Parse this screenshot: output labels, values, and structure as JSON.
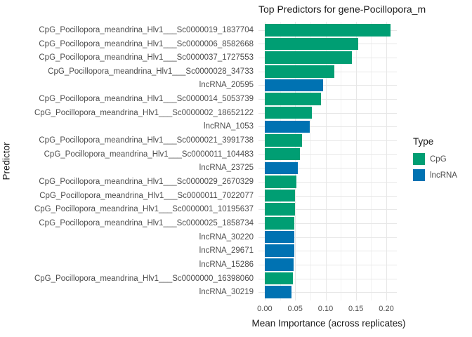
{
  "chart_data": {
    "type": "bar",
    "orientation": "horizontal",
    "title": "Top Predictors for gene-Pocillopora_m",
    "xlabel": "Mean Importance (across replicates)",
    "ylabel": "Predictor",
    "xlim": [
      0,
      0.2174
    ],
    "x_ticks": [
      0.0,
      0.05,
      0.1,
      0.15,
      0.2
    ],
    "x_tick_labels": [
      "0.00",
      "0.05",
      "0.10",
      "0.15",
      "0.20"
    ],
    "x_minor_gridlines": [
      0.025,
      0.075,
      0.125,
      0.175
    ],
    "grid": true,
    "legend": {
      "title": "Type",
      "position": "right",
      "entries": [
        {
          "label": "CpG",
          "color": "#009E73"
        },
        {
          "label": "lncRNA",
          "color": "#0072B2"
        }
      ]
    },
    "series_colors": {
      "CpG": "#009E73",
      "lncRNA": "#0072B2"
    },
    "bars": [
      {
        "label": "CpG_Pocillopora_meandrina_Hlv1___Sc0000019_1837704",
        "type": "CpG",
        "value": 0.207
      },
      {
        "label": "CpG_Pocillopora_meandrina_Hlv1___Sc0000006_8582668",
        "type": "CpG",
        "value": 0.154
      },
      {
        "label": "CpG_Pocillopora_meandrina_Hlv1___Sc0000037_1727553",
        "type": "CpG",
        "value": 0.143
      },
      {
        "label": "CpG_Pocillopora_meandrina_Hlv1___Sc0000028_34733",
        "type": "CpG",
        "value": 0.114
      },
      {
        "label": "lncRNA_20595",
        "type": "lncRNA",
        "value": 0.096
      },
      {
        "label": "CpG_Pocillopora_meandrina_Hlv1___Sc0000014_5053739",
        "type": "CpG",
        "value": 0.092
      },
      {
        "label": "CpG_Pocillopora_meandrina_Hlv1___Sc0000002_18652122",
        "type": "CpG",
        "value": 0.078
      },
      {
        "label": "lncRNA_1053",
        "type": "lncRNA",
        "value": 0.074
      },
      {
        "label": "CpG_Pocillopora_meandrina_Hlv1___Sc0000021_3991738",
        "type": "CpG",
        "value": 0.061
      },
      {
        "label": "CpG_Pocillopora_meandrina_Hlv1___Sc0000011_104483",
        "type": "CpG",
        "value": 0.058
      },
      {
        "label": "lncRNA_23725",
        "type": "lncRNA",
        "value": 0.054
      },
      {
        "label": "CpG_Pocillopora_meandrina_Hlv1___Sc0000029_2670329",
        "type": "CpG",
        "value": 0.052
      },
      {
        "label": "CpG_Pocillopora_meandrina_Hlv1___Sc0000011_7022077",
        "type": "CpG",
        "value": 0.05
      },
      {
        "label": "CpG_Pocillopora_meandrina_Hlv1___Sc0000001_10195637",
        "type": "CpG",
        "value": 0.05
      },
      {
        "label": "CpG_Pocillopora_meandrina_Hlv1___Sc0000025_1858734",
        "type": "CpG",
        "value": 0.049
      },
      {
        "label": "lncRNA_30220",
        "type": "lncRNA",
        "value": 0.049
      },
      {
        "label": "lncRNA_29671",
        "type": "lncRNA",
        "value": 0.049
      },
      {
        "label": "lncRNA_15286",
        "type": "lncRNA",
        "value": 0.047
      },
      {
        "label": "CpG_Pocillopora_meandrina_Hlv1___Sc0000000_16398060",
        "type": "CpG",
        "value": 0.046
      },
      {
        "label": "lncRNA_30219",
        "type": "lncRNA",
        "value": 0.044
      }
    ]
  }
}
